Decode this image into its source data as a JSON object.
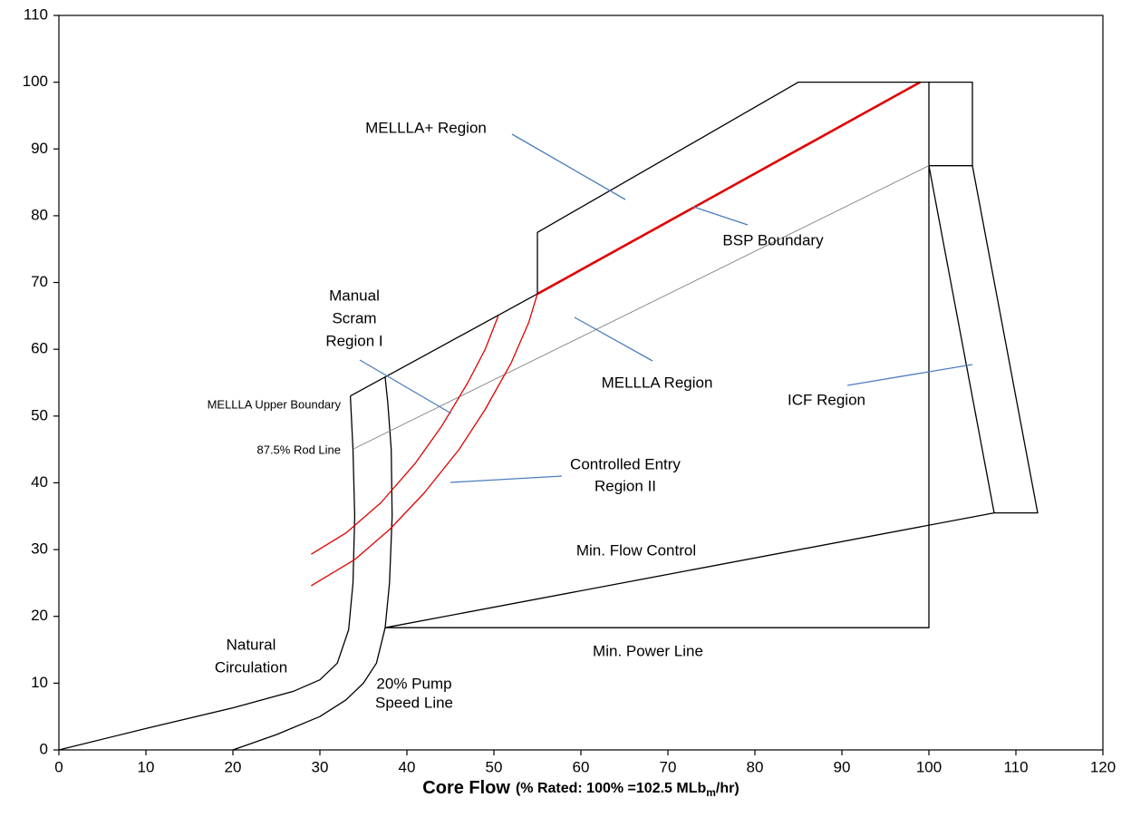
{
  "chart_data": {
    "type": "line",
    "xlabel": {
      "main": "Core Flow",
      "note": "(% Rated: 100% =102.5 MLb",
      "sub": "m",
      "end": "/hr)"
    },
    "xlim": [
      0,
      120
    ],
    "ylim": [
      0,
      110
    ],
    "xticks": [
      0,
      10,
      20,
      30,
      40,
      50,
      60,
      70,
      80,
      90,
      100,
      110,
      120
    ],
    "yticks": [
      0,
      10,
      20,
      30,
      40,
      50,
      60,
      70,
      80,
      90,
      100,
      110
    ],
    "series": [
      {
        "color": "#000000",
        "x": [
          0,
          10,
          20,
          27,
          30,
          32,
          33.3,
          33.8,
          34.0,
          33.8,
          33.5
        ],
        "values": [
          0,
          3.2,
          6.3,
          8.8,
          10.5,
          13,
          18,
          25,
          35,
          45,
          53
        ]
      },
      {
        "color": "#000000",
        "x": [
          20,
          25,
          30,
          33,
          35,
          36.5,
          37.5,
          38,
          38.3,
          38.2,
          37.8,
          37.5
        ],
        "values": [
          0,
          2.3,
          5,
          7.5,
          10,
          13,
          18.3,
          25,
          35,
          45,
          52,
          55.8
        ]
      },
      {
        "color": "#000000",
        "x": [
          33.5,
          55
        ],
        "values": [
          53,
          68.3
        ]
      },
      {
        "color": "#e00000",
        "x": [
          55,
          99
        ],
        "values": [
          68.3,
          100
        ]
      },
      {
        "color": "#000000",
        "x": [
          55,
          55,
          85,
          105,
          105,
          100
        ],
        "values": [
          68.3,
          77.5,
          100,
          100,
          87.5,
          87.5
        ]
      },
      {
        "color": "#000000",
        "x": [
          100,
          100,
          37.5,
          107.5,
          112.5,
          105
        ],
        "values": [
          100,
          18.3,
          18.3,
          35.5,
          35.5,
          87.5
        ]
      },
      {
        "color": "#000000",
        "x": [
          100,
          107.5
        ],
        "values": [
          87.5,
          35.5
        ]
      },
      {
        "color": "#808080",
        "x": [
          33.9,
          100
        ],
        "values": [
          45.1,
          87.5
        ]
      },
      {
        "color": "#e00000",
        "x": [
          29,
          33,
          37,
          41,
          44,
          47,
          49,
          50.5
        ],
        "values": [
          29.3,
          32.5,
          37,
          43,
          48.5,
          55,
          60,
          65
        ]
      },
      {
        "color": "#e00000",
        "x": [
          29,
          34,
          38,
          42,
          46,
          49,
          52,
          54,
          55
        ],
        "values": [
          24.6,
          28.5,
          33,
          38.5,
          45,
          51,
          58,
          64,
          68.3
        ]
      }
    ],
    "annotations": [
      [
        "MELLLA+ Region"
      ],
      [
        "BSP Boundary"
      ],
      [
        "Manual",
        "Scram",
        "Region I"
      ],
      [
        "MELLLA Region"
      ],
      [
        "ICF Region"
      ],
      [
        "MELLLA Upper Boundary"
      ],
      [
        "87.5% Rod Line"
      ],
      [
        "Controlled Entry",
        "Region II"
      ],
      [
        "Min. Flow Control"
      ],
      [
        "Natural",
        "Circulation"
      ],
      [
        "20% Pump",
        "Speed Line"
      ],
      [
        "Min. Power Line"
      ]
    ]
  }
}
